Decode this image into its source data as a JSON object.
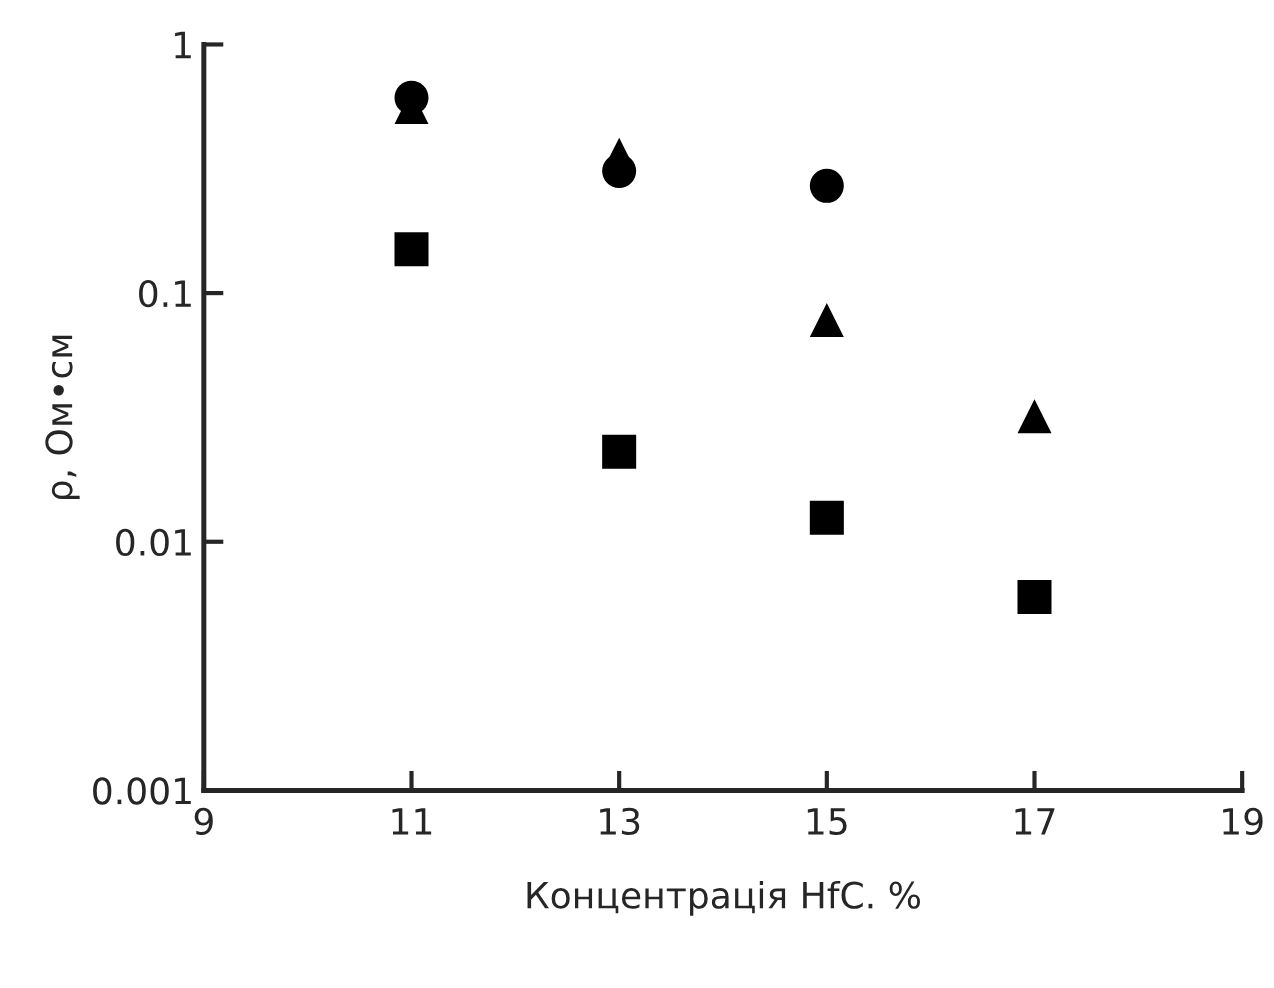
{
  "chart_data": {
    "type": "scatter",
    "xlabel": "Концентрація HfC. %",
    "ylabel": "ρ, Ом•см",
    "log": "y",
    "grid": false,
    "legend": false,
    "xlim": [
      9,
      19
    ],
    "xticks": [
      9,
      11,
      13,
      15,
      17,
      19
    ],
    "ylim": [
      0.001,
      1
    ],
    "yticks": [
      0.001,
      0.01,
      0.1,
      1
    ],
    "series": [
      {
        "color": "#000000",
        "marker": "triangle",
        "x": [
          11,
          13,
          15,
          17
        ],
        "values": [
          0.56,
          0.36,
          0.078,
          0.032
        ]
      },
      {
        "color": "#000000",
        "marker": "circle",
        "x": [
          11,
          13,
          15
        ],
        "values": [
          0.61,
          0.31,
          0.27
        ]
      },
      {
        "color": "#000000",
        "marker": "square",
        "x": [
          11,
          13,
          15,
          17
        ],
        "values": [
          0.15,
          0.023,
          0.0125,
          0.006
        ]
      }
    ]
  }
}
